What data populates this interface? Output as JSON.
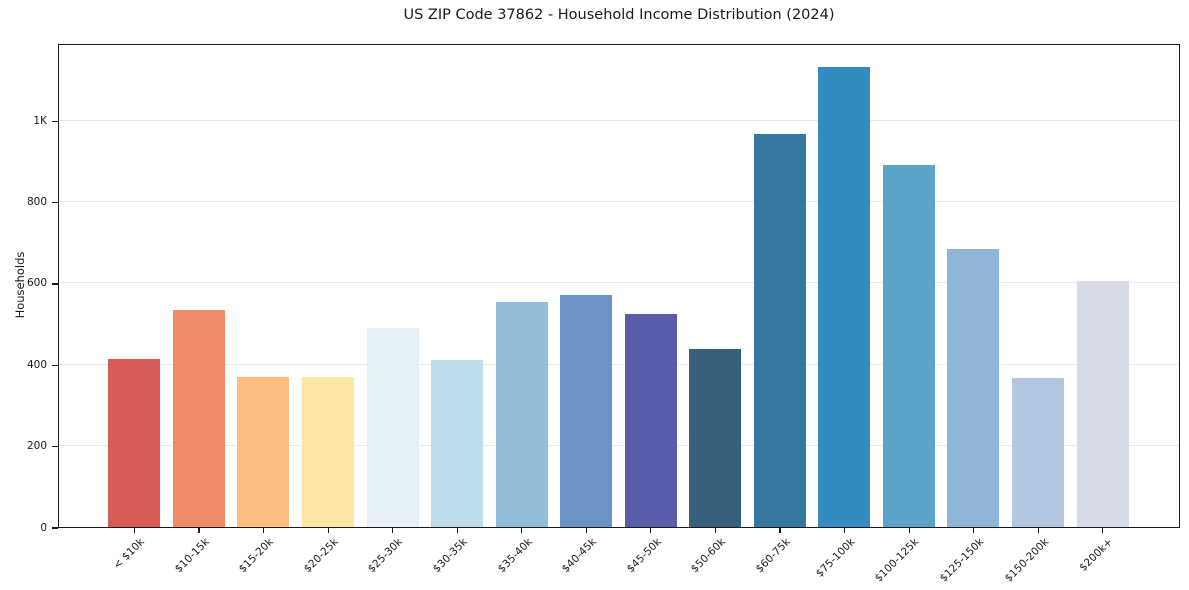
{
  "chart_data": {
    "type": "bar",
    "title": "US ZIP Code 37862 - Household Income Distribution (2024)",
    "xlabel": "",
    "ylabel": "Households",
    "categories": [
      "< $10k",
      "$10-15k",
      "$15-20k",
      "$20-25k",
      "$25-30k",
      "$30-35k",
      "$35-40k",
      "$40-45k",
      "$45-50k",
      "$50-60k",
      "$60-75k",
      "$75-100k",
      "$100-125k",
      "$125-150k",
      "$150-200k",
      "$200k+"
    ],
    "values": [
      413,
      534,
      369,
      369,
      489,
      411,
      554,
      571,
      524,
      438,
      966,
      1132,
      890,
      684,
      366,
      604
    ],
    "bar_colors": [
      "#d65c55",
      "#f18a69",
      "#fbbd80",
      "#fde5a4",
      "#e5f1f7",
      "#bcdde9",
      "#92bdda",
      "#6b93c6",
      "#5a5dac",
      "#36607b",
      "#34789f",
      "#338bbf",
      "#5aa4ca",
      "#8fb5d8",
      "#b3c7e0",
      "#d8dbe8"
    ],
    "ylim": [
      0,
      1190
    ],
    "yticks": {
      "values": [
        0,
        200,
        400,
        600,
        800,
        1000
      ],
      "labels": [
        "0",
        "200",
        "400",
        "600",
        "800",
        "1K"
      ]
    },
    "gridline_values": [
      200,
      400,
      600,
      800,
      1000
    ],
    "grid": "horizontal",
    "legend_position": "none",
    "colors": {
      "gridline": "#e9e9ec",
      "spine": "#1a1a1a",
      "text": "#1a1a1a",
      "background": "#ffffff"
    }
  }
}
